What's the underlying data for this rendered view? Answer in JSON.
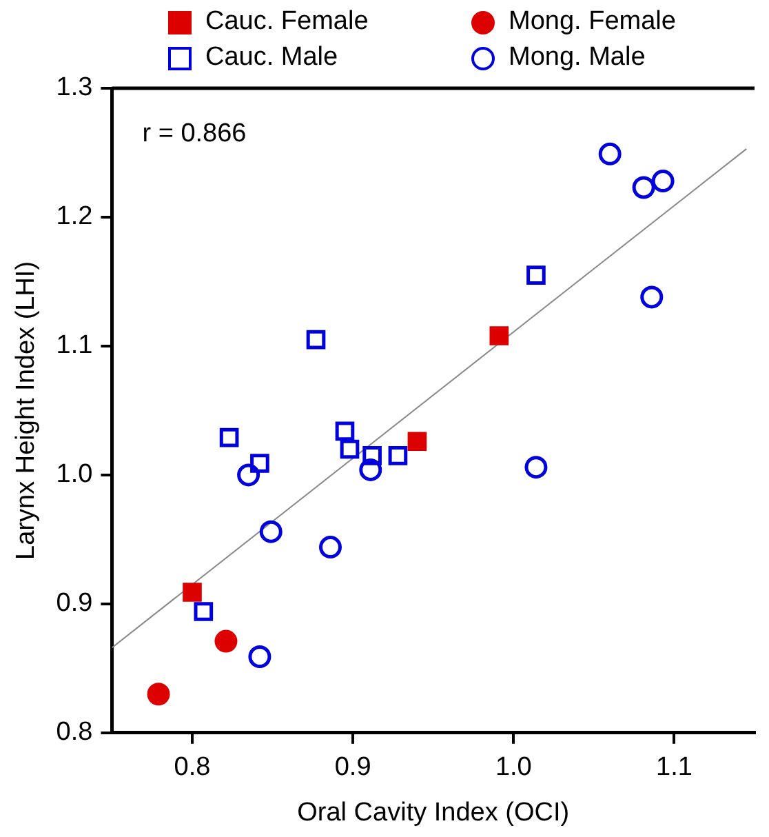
{
  "chart_data": {
    "type": "scatter",
    "xlabel": "Oral Cavity Index (OCI)",
    "ylabel": "Larynx Height Index (LHI)",
    "xlim": [
      0.75,
      1.15
    ],
    "xticks": [
      {
        "value": 0.8,
        "label": "0.8"
      },
      {
        "value": 0.9,
        "label": "0.9"
      },
      {
        "value": 1.0,
        "label": "1.0"
      },
      {
        "value": 1.1,
        "label": "1.1"
      }
    ],
    "ylim": [
      0.8,
      1.3
    ],
    "yticks": [
      {
        "value": 0.8,
        "label": "0.8"
      },
      {
        "value": 0.9,
        "label": "0.9"
      },
      {
        "value": 1.0,
        "label": "1.0"
      },
      {
        "value": 1.1,
        "label": "1.1"
      },
      {
        "value": 1.2,
        "label": "1.2"
      },
      {
        "value": 1.3,
        "label": "1.3"
      }
    ],
    "grid": false,
    "legend": "top",
    "annotations": [
      "r = 0.866"
    ],
    "series": [
      {
        "name": "Cauc. Female",
        "color": "#dd0000",
        "marker": "square",
        "x": [
          0.8,
          0.94,
          0.991
        ],
        "values": [
          0.909,
          1.026,
          1.108
        ]
      },
      {
        "name": "Mong. Female",
        "color": "#dd0000",
        "marker": "circle",
        "x": [
          0.821,
          0.779
        ],
        "values": [
          0.871,
          0.83
        ]
      },
      {
        "name": "Cauc. Male",
        "color": "#0000dd",
        "marker": "square",
        "x": [
          0.823,
          0.842,
          0.877,
          0.895,
          0.898,
          0.912,
          0.928,
          1.014,
          0.807
        ],
        "values": [
          1.029,
          1.009,
          1.105,
          1.034,
          1.02,
          1.015,
          1.015,
          1.155,
          0.894
        ]
      },
      {
        "name": "Mong. Male",
        "color": "#0000dd",
        "marker": "circle",
        "x": [
          1.06,
          1.081,
          1.093,
          1.086,
          1.014,
          0.835,
          0.911,
          0.849,
          0.886,
          0.842
        ],
        "values": [
          1.249,
          1.223,
          1.228,
          1.138,
          1.006,
          1.0,
          1.004,
          0.956,
          0.944,
          0.859
        ]
      },
      {
        "type": "line",
        "color": "#888888",
        "marker": "none",
        "x": [
          0.75,
          1.145
        ],
        "values": [
          0.866,
          1.253
        ]
      }
    ]
  }
}
